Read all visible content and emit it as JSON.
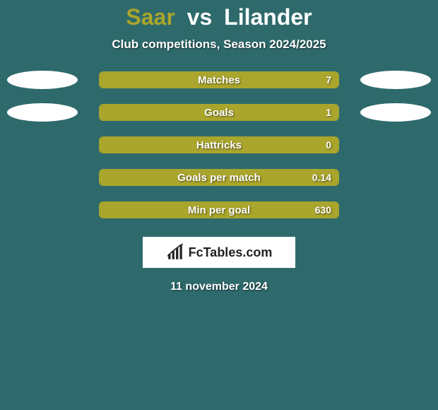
{
  "background_color": "#2e6a6c",
  "fill_color": "#aaa52c",
  "border_color": "#aaa52c",
  "player1_color": "#aaa52c",
  "vs_color": "#ffffff",
  "player2_color": "#ffffff",
  "title": {
    "p1": "Saar",
    "vs": "vs",
    "p2": "Lilander"
  },
  "subtitle": "Club competitions, Season 2024/2025",
  "rows": [
    {
      "label": "Matches",
      "value": "7",
      "fill_pct": 100,
      "left_ellipse": true,
      "right_ellipse": true
    },
    {
      "label": "Goals",
      "value": "1",
      "fill_pct": 100,
      "left_ellipse": true,
      "right_ellipse": true
    },
    {
      "label": "Hattricks",
      "value": "0",
      "fill_pct": 100,
      "left_ellipse": false,
      "right_ellipse": false
    },
    {
      "label": "Goals per match",
      "value": "0.14",
      "fill_pct": 100,
      "left_ellipse": false,
      "right_ellipse": false
    },
    {
      "label": "Min per goal",
      "value": "630",
      "fill_pct": 100,
      "left_ellipse": false,
      "right_ellipse": false
    }
  ],
  "logo_text": "FcTables.com",
  "date": "11 november 2024"
}
